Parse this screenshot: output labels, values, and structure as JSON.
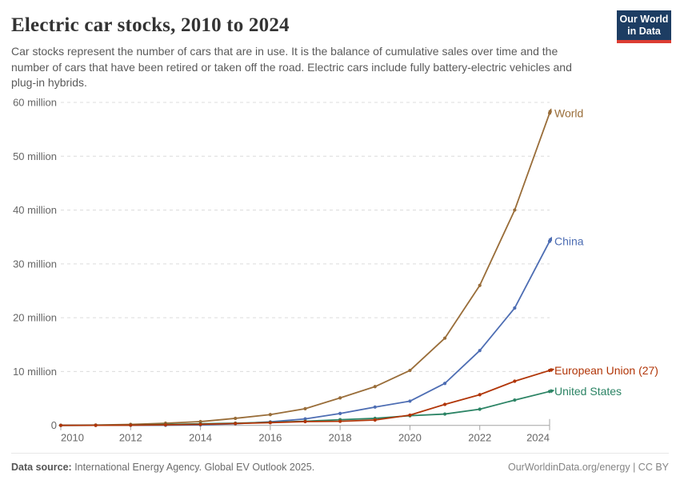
{
  "header": {
    "title": "Electric car stocks, 2010 to 2024",
    "subtitle": "Car stocks represent the number of cars that are in use. It is the balance of cumulative sales over time and the number of cars that have been retired or taken off the road. Electric cars include fully battery-electric vehicles and plug-in hybrids.",
    "logo": {
      "line1": "Our World",
      "line2": "in Data"
    }
  },
  "chart_data": {
    "type": "line",
    "title": "Electric car stocks, 2010 to 2024",
    "unit": "million cars",
    "x": [
      2010,
      2011,
      2012,
      2013,
      2014,
      2015,
      2016,
      2017,
      2018,
      2019,
      2020,
      2021,
      2022,
      2023,
      2024
    ],
    "series": [
      {
        "name": "World",
        "color": "#996d39",
        "values": [
          0.02,
          0.06,
          0.18,
          0.4,
          0.7,
          1.3,
          2.0,
          3.1,
          5.1,
          7.2,
          10.2,
          16.2,
          26.0,
          40.0,
          58.0
        ]
      },
      {
        "name": "China",
        "color": "#4d6db3",
        "values": [
          0.0,
          0.01,
          0.02,
          0.03,
          0.1,
          0.3,
          0.65,
          1.2,
          2.2,
          3.4,
          4.5,
          7.8,
          13.9,
          21.8,
          34.2
        ]
      },
      {
        "name": "United States",
        "color": "#2c8465",
        "values": [
          0.0,
          0.02,
          0.07,
          0.17,
          0.29,
          0.4,
          0.56,
          0.76,
          1.05,
          1.3,
          1.8,
          2.1,
          3.0,
          4.7,
          6.3
        ]
      },
      {
        "name": "European Union (27)",
        "color": "#b13507",
        "values": [
          0.0,
          0.01,
          0.04,
          0.1,
          0.2,
          0.35,
          0.5,
          0.7,
          0.75,
          1.0,
          1.9,
          3.9,
          5.7,
          8.2,
          10.2
        ]
      }
    ],
    "label_order": [
      "World",
      "China",
      "European Union (27)",
      "United States"
    ],
    "ylim": [
      0,
      60
    ],
    "yticks": [
      0,
      10,
      20,
      30,
      40,
      50,
      60
    ],
    "ytick_suffix": " million",
    "xticks": [
      2010,
      2012,
      2014,
      2016,
      2018,
      2020,
      2022,
      2024
    ],
    "grid": "dashed-horizontal",
    "legend_position": "right-of-line-ends",
    "colors": {
      "grid": "#dcdcdc",
      "axis": "#a3a3a3",
      "tick_text": "#666666"
    }
  },
  "footer": {
    "source_label": "Data source:",
    "source_text": " International Energy Agency. Global EV Outlook 2025.",
    "right": "OurWorldinData.org/energy | CC BY"
  }
}
